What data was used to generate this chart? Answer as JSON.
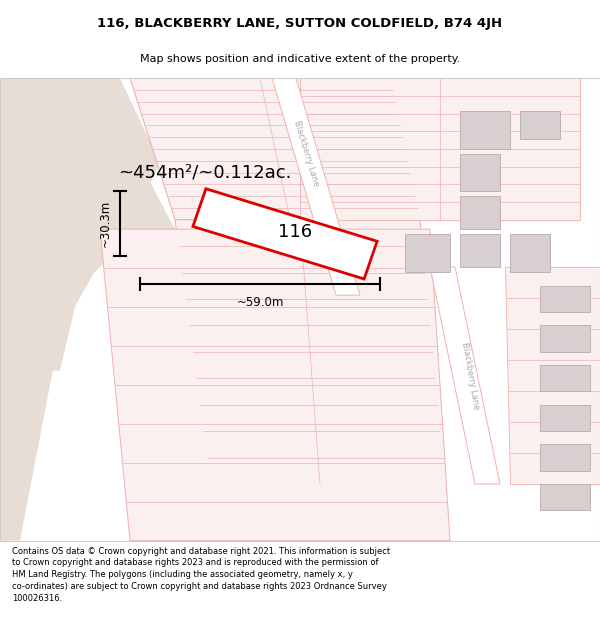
{
  "title_line1": "116, BLACKBERRY LANE, SUTTON COLDFIELD, B74 4JH",
  "title_line2": "Map shows position and indicative extent of the property.",
  "footer_text": "Contains OS data © Crown copyright and database right 2021. This information is subject to Crown copyright and database rights 2023 and is reproduced with the permission of HM Land Registry. The polygons (including the associated geometry, namely x, y co-ordinates) are subject to Crown copyright and database rights 2023 Ordnance Survey 100026316.",
  "area_label": "~454m²/~0.112ac.",
  "width_label": "~59.0m",
  "height_label": "~30.3m",
  "plot_number": "116",
  "map_bg": "#ffffff",
  "pink_line": "#f0b0b0",
  "pink_fill": "#faf0f0",
  "red_outline": "#dd0000",
  "gray_bldg": "#d8d0d0",
  "gray_bldg_edge": "#c0b0b0",
  "beige_area": "#e8ddd5",
  "road_label_color": "#aaaaaa",
  "title_fontsize": 9.5,
  "subtitle_fontsize": 8.0,
  "footer_fontsize": 6.0
}
